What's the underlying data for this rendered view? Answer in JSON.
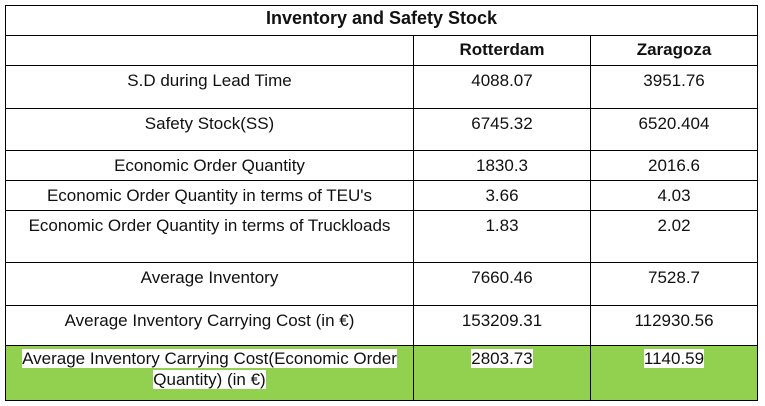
{
  "table": {
    "title": "Inventory and Safety Stock",
    "header": [
      "Rotterdam",
      "Zaragoza"
    ],
    "rows": [
      [
        "S.D during Lead Time",
        "4088.07",
        "3951.76"
      ],
      [
        "Safety Stock(SS)",
        "6745.32",
        "6520.404"
      ],
      [
        "Economic Order Quantity",
        "1830.3",
        "2016.6"
      ],
      [
        "Economic Order Quantity in terms of TEU's",
        "3.66",
        "4.03"
      ],
      [
        "Economic Order Quantity in terms of Truckloads",
        "1.83",
        "2.02"
      ],
      [
        "Average Inventory",
        "7660.46",
        "7528.7"
      ],
      [
        "Average Inventory Carrying Cost (in €)",
        "153209.31",
        "112930.56"
      ],
      [
        "Average Inventory Carrying Cost(Economic Order Quantity) (in €)",
        "2803.73",
        "1140.59"
      ]
    ]
  }
}
